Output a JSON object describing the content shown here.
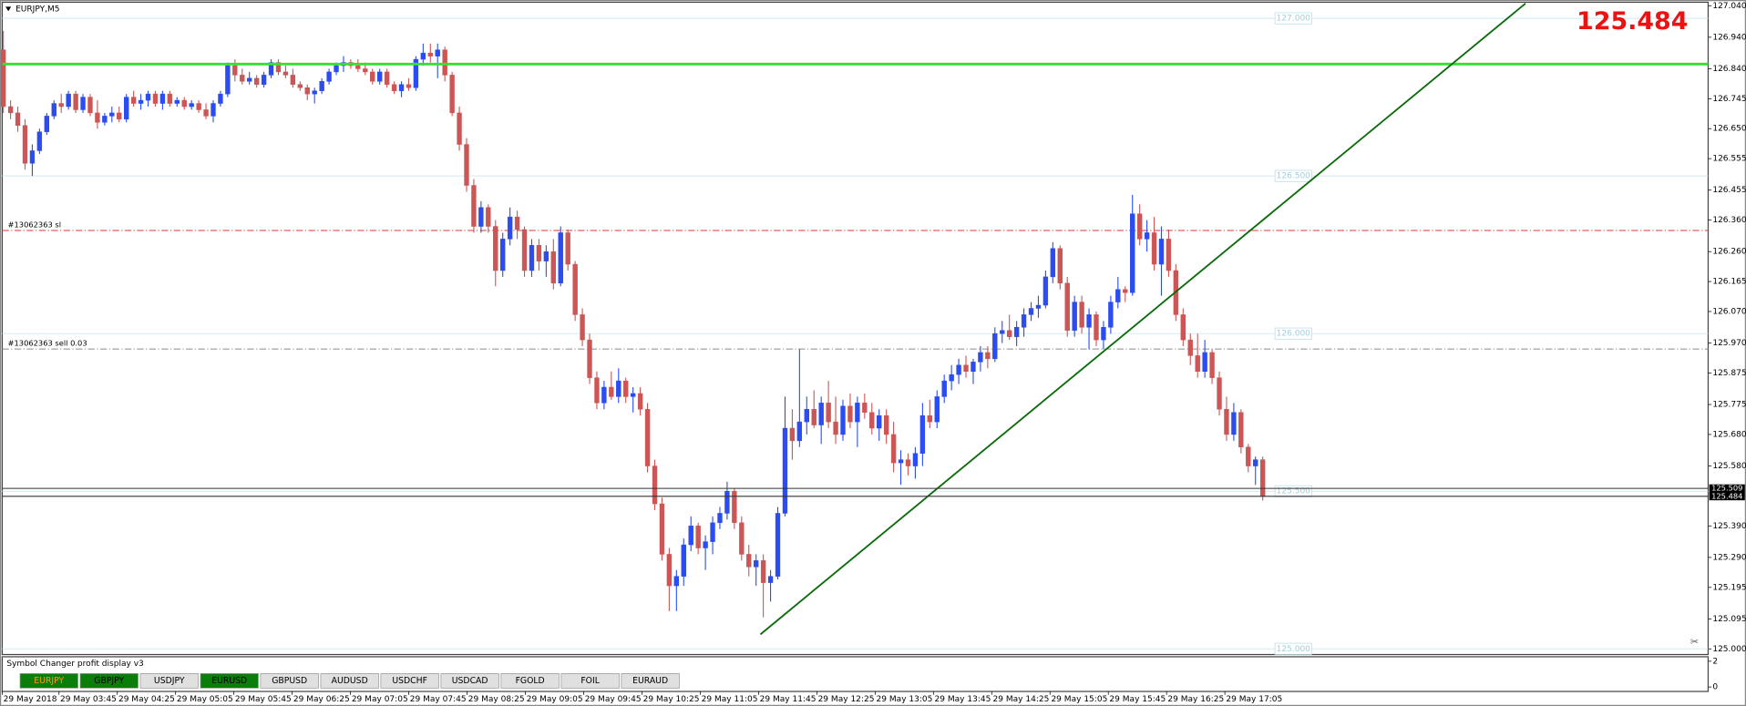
{
  "chart_data": {
    "type": "candlestick",
    "title": "EURJPY,M5",
    "up_color": "#2a4cf0",
    "down_color": "#cc5555",
    "ylim": [
      124.982,
      127.051
    ],
    "yticks": [
      {
        "value": 127.04,
        "label": "127.040"
      },
      {
        "value": 126.94,
        "label": "126.940"
      },
      {
        "value": 126.84,
        "label": "126.840"
      },
      126.745,
      {
        "value": 126.65,
        "label": "126.650"
      },
      126.555,
      126.455,
      {
        "value": 126.36,
        "label": "126.360"
      },
      {
        "value": 126.26,
        "label": "126.260"
      },
      126.165,
      {
        "value": 126.07,
        "label": "126.070"
      },
      {
        "value": 125.97,
        "label": "125.970"
      },
      125.875,
      125.775,
      {
        "value": 125.68,
        "label": "125.680"
      },
      {
        "value": 125.58,
        "label": "125.580"
      },
      {
        "value": 125.39,
        "label": "125.390"
      },
      {
        "value": 125.29,
        "label": "125.290"
      },
      125.195,
      125.095,
      {
        "value": 125,
        "label": "125.000"
      }
    ],
    "time_labels": [
      "29 May 2018",
      "29 May 03:45",
      "29 May 04:25",
      "29 May 05:05",
      "29 May 05:45",
      "29 May 06:25",
      "29 May 07:05",
      "29 May 07:45",
      "29 May 08:25",
      "29 May 09:05",
      "29 May 09:45",
      "29 May 10:25",
      "29 May 11:05",
      "29 May 11:45",
      "29 May 12:25",
      "29 May 13:05",
      "29 May 13:45",
      "29 May 14:25",
      "29 May 15:05",
      "29 May 15:45",
      "29 May 16:25",
      "29 May 17:05"
    ],
    "candles": [
      [
        126.9,
        126.96,
        126.7,
        126.72
      ],
      [
        126.72,
        126.74,
        126.68,
        126.7
      ],
      [
        126.7,
        126.72,
        126.64,
        126.66
      ],
      [
        126.66,
        126.68,
        126.52,
        126.54
      ],
      [
        126.54,
        126.6,
        126.5,
        126.58
      ],
      [
        126.58,
        126.65,
        126.57,
        126.64
      ],
      [
        126.64,
        126.7,
        126.63,
        126.69
      ],
      [
        126.69,
        126.74,
        126.68,
        126.73
      ],
      [
        126.73,
        126.76,
        126.7,
        126.72
      ],
      [
        126.72,
        126.77,
        126.71,
        126.76
      ],
      [
        126.76,
        126.77,
        126.7,
        126.71
      ],
      [
        126.71,
        126.76,
        126.7,
        126.75
      ],
      [
        126.75,
        126.76,
        126.69,
        126.7
      ],
      [
        126.7,
        126.74,
        126.65,
        126.67
      ],
      [
        126.67,
        126.7,
        126.66,
        126.69
      ],
      [
        126.69,
        126.72,
        126.67,
        126.7
      ],
      [
        126.7,
        126.72,
        126.67,
        126.68
      ],
      [
        126.68,
        126.76,
        126.67,
        126.75
      ],
      [
        126.75,
        126.77,
        126.72,
        126.73
      ],
      [
        126.73,
        126.76,
        126.71,
        126.74
      ],
      [
        126.74,
        126.77,
        126.72,
        126.76
      ],
      [
        126.76,
        126.77,
        126.72,
        126.73
      ],
      [
        126.73,
        126.77,
        126.71,
        126.76
      ],
      [
        126.76,
        126.77,
        126.72,
        126.73
      ],
      [
        126.73,
        126.75,
        126.72,
        126.74
      ],
      [
        126.74,
        126.75,
        126.71,
        126.72
      ],
      [
        126.72,
        126.74,
        126.71,
        126.73
      ],
      [
        126.73,
        126.74,
        126.7,
        126.71
      ],
      [
        126.71,
        126.73,
        126.68,
        126.69
      ],
      [
        126.69,
        126.74,
        126.67,
        126.73
      ],
      [
        126.73,
        126.77,
        126.72,
        126.76
      ],
      [
        126.76,
        126.86,
        126.75,
        126.85
      ],
      [
        126.85,
        126.87,
        126.8,
        126.82
      ],
      [
        126.82,
        126.84,
        126.79,
        126.8
      ],
      [
        126.8,
        126.83,
        126.79,
        126.81
      ],
      [
        126.81,
        126.82,
        126.78,
        126.79
      ],
      [
        126.79,
        126.83,
        126.78,
        126.82
      ],
      [
        126.82,
        126.87,
        126.81,
        126.86
      ],
      [
        126.86,
        126.87,
        126.82,
        126.83
      ],
      [
        126.83,
        126.85,
        126.81,
        126.82
      ],
      [
        126.82,
        126.84,
        126.78,
        126.79
      ],
      [
        126.79,
        126.8,
        126.77,
        126.78
      ],
      [
        126.78,
        126.79,
        126.74,
        126.76
      ],
      [
        126.76,
        126.78,
        126.73,
        126.77
      ],
      [
        126.77,
        126.81,
        126.76,
        126.8
      ],
      [
        126.8,
        126.84,
        126.79,
        126.83
      ],
      [
        126.83,
        126.86,
        126.82,
        126.85
      ],
      [
        126.85,
        126.88,
        126.83,
        126.86
      ],
      [
        126.86,
        126.87,
        126.84,
        126.85
      ],
      [
        126.85,
        126.87,
        126.83,
        126.84
      ],
      [
        126.84,
        126.86,
        126.82,
        126.83
      ],
      [
        126.83,
        126.84,
        126.79,
        126.8
      ],
      [
        126.8,
        126.84,
        126.79,
        126.83
      ],
      [
        126.83,
        126.84,
        126.78,
        126.79
      ],
      [
        126.79,
        126.8,
        126.76,
        126.77
      ],
      [
        126.77,
        126.8,
        126.75,
        126.79
      ],
      [
        126.79,
        126.81,
        126.77,
        126.78
      ],
      [
        126.78,
        126.88,
        126.77,
        126.87
      ],
      [
        126.87,
        126.92,
        126.85,
        126.89
      ],
      [
        126.89,
        126.92,
        126.86,
        126.88
      ],
      [
        126.88,
        126.92,
        126.81,
        126.9
      ],
      [
        126.9,
        126.91,
        126.8,
        126.82
      ],
      [
        126.82,
        126.83,
        126.69,
        126.7
      ],
      [
        126.7,
        126.72,
        126.58,
        126.6
      ],
      [
        126.6,
        126.62,
        126.45,
        126.47
      ],
      [
        126.47,
        126.49,
        126.32,
        126.34
      ],
      [
        126.34,
        126.42,
        126.32,
        126.4
      ],
      [
        126.4,
        126.41,
        126.32,
        126.34
      ],
      [
        126.34,
        126.36,
        126.15,
        126.2
      ],
      [
        126.2,
        126.32,
        126.18,
        126.3
      ],
      [
        126.3,
        126.4,
        126.28,
        126.37
      ],
      [
        126.37,
        126.39,
        126.3,
        126.33
      ],
      [
        126.33,
        126.34,
        126.18,
        126.2
      ],
      [
        126.2,
        126.3,
        126.18,
        126.28
      ],
      [
        126.28,
        126.3,
        126.2,
        126.23
      ],
      [
        126.23,
        126.28,
        126.18,
        126.26
      ],
      [
        126.26,
        126.3,
        126.14,
        126.16
      ],
      [
        126.16,
        126.34,
        126.15,
        126.32
      ],
      [
        126.32,
        126.33,
        126.2,
        126.22
      ],
      [
        126.22,
        126.23,
        126.04,
        126.06
      ],
      [
        126.06,
        126.08,
        125.96,
        125.98
      ],
      [
        125.98,
        126,
        125.84,
        125.86
      ],
      [
        125.86,
        125.88,
        125.76,
        125.78
      ],
      [
        125.78,
        125.85,
        125.76,
        125.83
      ],
      [
        125.83,
        125.88,
        125.79,
        125.8
      ],
      [
        125.8,
        125.89,
        125.78,
        125.85
      ],
      [
        125.85,
        125.86,
        125.78,
        125.8
      ],
      [
        125.8,
        125.83,
        125.75,
        125.81
      ],
      [
        125.81,
        125.83,
        125.74,
        125.76
      ],
      [
        125.76,
        125.78,
        125.56,
        125.58
      ],
      [
        125.58,
        125.6,
        125.44,
        125.46
      ],
      [
        125.46,
        125.48,
        125.28,
        125.3
      ],
      [
        125.3,
        125.32,
        125.12,
        125.2
      ],
      [
        125.2,
        125.25,
        125.12,
        125.23
      ],
      [
        125.23,
        125.35,
        125.2,
        125.33
      ],
      [
        125.33,
        125.42,
        125.31,
        125.39
      ],
      [
        125.39,
        125.4,
        125.3,
        125.32
      ],
      [
        125.32,
        125.36,
        125.25,
        125.34
      ],
      [
        125.34,
        125.42,
        125.3,
        125.4
      ],
      [
        125.4,
        125.45,
        125.38,
        125.43
      ],
      [
        125.43,
        125.53,
        125.41,
        125.5
      ],
      [
        125.5,
        125.51,
        125.38,
        125.4
      ],
      [
        125.4,
        125.42,
        125.28,
        125.3
      ],
      [
        125.3,
        125.33,
        125.23,
        125.26
      ],
      [
        125.26,
        125.3,
        125.2,
        125.28
      ],
      [
        125.28,
        125.3,
        125.1,
        125.21
      ],
      [
        125.21,
        125.25,
        125.15,
        125.23
      ],
      [
        125.23,
        125.45,
        125.22,
        125.43
      ],
      [
        125.43,
        125.8,
        125.42,
        125.7
      ],
      [
        125.7,
        125.76,
        125.6,
        125.66
      ],
      [
        125.66,
        125.95,
        125.64,
        125.72
      ],
      [
        125.72,
        125.8,
        125.68,
        125.76
      ],
      [
        125.76,
        125.82,
        125.7,
        125.71
      ],
      [
        125.71,
        125.8,
        125.65,
        125.78
      ],
      [
        125.78,
        125.85,
        125.7,
        125.72
      ],
      [
        125.72,
        125.8,
        125.65,
        125.68
      ],
      [
        125.68,
        125.79,
        125.66,
        125.77
      ],
      [
        125.77,
        125.81,
        125.7,
        125.72
      ],
      [
        125.72,
        125.8,
        125.64,
        125.78
      ],
      [
        125.78,
        125.81,
        125.73,
        125.75
      ],
      [
        125.75,
        125.78,
        125.68,
        125.7
      ],
      [
        125.7,
        125.76,
        125.66,
        125.74
      ],
      [
        125.74,
        125.76,
        125.65,
        125.68
      ],
      [
        125.68,
        125.72,
        125.56,
        125.59
      ],
      [
        125.59,
        125.63,
        125.52,
        125.6
      ],
      [
        125.6,
        125.62,
        125.55,
        125.58
      ],
      [
        125.58,
        125.64,
        125.54,
        125.62
      ],
      [
        125.62,
        125.78,
        125.58,
        125.74
      ],
      [
        125.74,
        125.79,
        125.7,
        125.72
      ],
      [
        125.72,
        125.82,
        125.7,
        125.8
      ],
      [
        125.8,
        125.87,
        125.78,
        125.85
      ],
      [
        125.85,
        125.9,
        125.82,
        125.87
      ],
      [
        125.87,
        125.92,
        125.84,
        125.9
      ],
      [
        125.9,
        125.93,
        125.86,
        125.88
      ],
      [
        125.88,
        125.92,
        125.84,
        125.91
      ],
      [
        125.91,
        125.96,
        125.88,
        125.94
      ],
      [
        125.94,
        125.96,
        125.89,
        125.92
      ],
      [
        125.92,
        126.02,
        125.91,
        126
      ],
      [
        126,
        126.04,
        125.97,
        126.01
      ],
      [
        126.01,
        126.06,
        125.98,
        125.99
      ],
      [
        125.99,
        126.04,
        125.96,
        126.02
      ],
      [
        126.02,
        126.08,
        125.99,
        126.06
      ],
      [
        126.06,
        126.1,
        126.04,
        126.08
      ],
      [
        126.08,
        126.12,
        126.05,
        126.09
      ],
      [
        126.09,
        126.2,
        126.08,
        126.18
      ],
      [
        126.18,
        126.29,
        126.16,
        126.27
      ],
      [
        126.27,
        126.28,
        126.14,
        126.16
      ],
      [
        126.16,
        126.18,
        125.99,
        126.01
      ],
      [
        126.01,
        126.12,
        125.99,
        126.1
      ],
      [
        126.1,
        126.12,
        126,
        126.02
      ],
      [
        126.02,
        126.08,
        125.95,
        126.06
      ],
      [
        126.06,
        126.07,
        125.96,
        125.98
      ],
      [
        125.98,
        126.04,
        125.95,
        126.02
      ],
      [
        126.02,
        126.12,
        126,
        126.1
      ],
      [
        126.1,
        126.18,
        126.08,
        126.14
      ],
      [
        126.14,
        126.15,
        126.1,
        126.13
      ],
      [
        126.13,
        126.44,
        126.12,
        126.38
      ],
      [
        126.38,
        126.41,
        126.28,
        126.3
      ],
      [
        126.3,
        126.36,
        126.26,
        126.32
      ],
      [
        126.32,
        126.37,
        126.2,
        126.22
      ],
      [
        126.22,
        126.34,
        126.12,
        126.3
      ],
      [
        126.3,
        126.33,
        126.18,
        126.2
      ],
      [
        126.2,
        126.22,
        126.04,
        126.06
      ],
      [
        126.06,
        126.08,
        125.96,
        125.98
      ],
      [
        125.98,
        126,
        125.9,
        125.93
      ],
      [
        125.93,
        126,
        125.86,
        125.88
      ],
      [
        125.88,
        125.98,
        125.86,
        125.94
      ],
      [
        125.94,
        125.95,
        125.84,
        125.86
      ],
      [
        125.86,
        125.88,
        125.74,
        125.76
      ],
      [
        125.76,
        125.8,
        125.66,
        125.68
      ],
      [
        125.68,
        125.78,
        125.66,
        125.75
      ],
      [
        125.75,
        125.76,
        125.62,
        125.64
      ],
      [
        125.64,
        125.65,
        125.56,
        125.58
      ],
      [
        125.58,
        125.61,
        125.52,
        125.6
      ],
      [
        125.6,
        125.61,
        125.47,
        125.484
      ]
    ],
    "hlines": [
      {
        "value": 126.855,
        "color": "#33e033"
      }
    ],
    "orders": [
      {
        "value": 126.327,
        "label": "#13062363 sl",
        "color": "#d83a3a"
      },
      {
        "value": 125.951,
        "label": "#13062363 sell 0.03",
        "color": "#8a8a8a"
      }
    ],
    "round_levels": [
      {
        "value": 127,
        "label": "127.000"
      },
      {
        "value": 126.5,
        "label": "126.500"
      },
      {
        "value": 126,
        "label": "126.000"
      },
      {
        "value": 125.5,
        "label": "125.500"
      },
      {
        "value": 125,
        "label": "125.000"
      }
    ],
    "ask": 125.509,
    "bid": 125.484,
    "trendline": {
      "bar": [
        104.6,
        210.3
      ],
      "price": [
        125.046,
        127.047
      ],
      "color": "#0a6a0a"
    }
  },
  "indicator": {
    "title": "Symbol Changer profit display v3",
    "yticks": [
      2,
      0
    ],
    "buttons": [
      {
        "label": "EURJPY",
        "color": "#0b7d0b",
        "text_color": "#ff9c00"
      },
      {
        "label": "GBPJPY",
        "color": "#0b7d0b",
        "text_color": "#000000"
      },
      {
        "label": "USDJPY",
        "color": "#e0e0e0",
        "text_color": "#000000"
      },
      {
        "label": "EURUSD",
        "color": "#0b7d0b",
        "text_color": "#000000"
      },
      {
        "label": "GBPUSD",
        "color": "#e0e0e0",
        "text_color": "#000000"
      },
      {
        "label": "AUDUSD",
        "color": "#e0e0e0",
        "text_color": "#000000"
      },
      {
        "label": "USDCHF",
        "color": "#e0e0e0",
        "text_color": "#000000"
      },
      {
        "label": "USDCAD",
        "color": "#e0e0e0",
        "text_color": "#000000"
      },
      {
        "label": "FGOLD",
        "color": "#e0e0e0",
        "text_color": "#000000"
      },
      {
        "label": "FOIL",
        "color": "#e0e0e0",
        "text_color": "#000000"
      },
      {
        "label": "EURAUD",
        "color": "#e0e0e0",
        "text_color": "#000000"
      }
    ]
  }
}
